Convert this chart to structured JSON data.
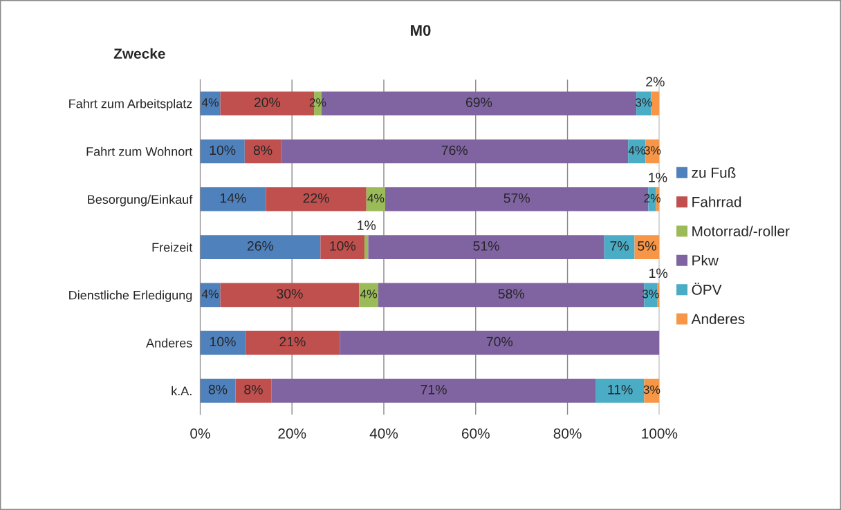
{
  "chart_data": {
    "type": "bar",
    "orientation": "horizontal",
    "stacked": true,
    "title": "M0",
    "ylabel": "Zwecke",
    "categories": [
      "Fahrt zum Arbeitsplatz",
      "Fahrt zum Wohnort",
      "Besorgung/Einkauf",
      "Freizeit",
      "Dienstliche Erledigung",
      "Anderes",
      "k.A."
    ],
    "series": [
      {
        "name": "zu Fuß",
        "color": "#4f81bd",
        "values": [
          4.4,
          9.7,
          14.3,
          26.2,
          4.4,
          9.8,
          7.7
        ],
        "value_labels": [
          "4%",
          "10%",
          "14%",
          "26%",
          "4%",
          "10%",
          "8%"
        ]
      },
      {
        "name": "Fahrrad",
        "color": "#c0504d",
        "values": [
          20.4,
          7.9,
          21.9,
          9.6,
          30.2,
          20.6,
          7.8
        ],
        "value_labels": [
          "20%",
          "8%",
          "22%",
          "10%",
          "30%",
          "21%",
          "8%"
        ]
      },
      {
        "name": "Motorrad/-roller",
        "color": "#9bbb59",
        "values": [
          1.6,
          0,
          4.1,
          0.8,
          4.2,
          0,
          0
        ],
        "value_labels": [
          "2%",
          null,
          "4%",
          "1%",
          "4%",
          null,
          null
        ]
      },
      {
        "name": "Pkw",
        "color": "#8064a2",
        "values": [
          68.6,
          75.6,
          57.3,
          51.4,
          57.9,
          69.6,
          70.7
        ],
        "value_labels": [
          "69%",
          "76%",
          "57%",
          "51%",
          "58%",
          "70%",
          "71%"
        ]
      },
      {
        "name": "ÖPV",
        "color": "#4bacc6",
        "values": [
          3.2,
          3.8,
          1.7,
          6.6,
          2.8,
          0,
          10.5
        ],
        "value_labels": [
          "3%",
          "4%",
          "2%",
          "7%",
          "3%",
          null,
          "11%"
        ]
      },
      {
        "name": "Anderes",
        "color": "#f79646",
        "values": [
          1.8,
          3.0,
          0.7,
          5.4,
          0.5,
          0,
          3.3
        ],
        "value_labels": [
          "2%",
          "3%",
          "1%",
          "5%",
          "1%",
          null,
          "3%"
        ]
      }
    ],
    "xlim": [
      0,
      100
    ],
    "xticks": [
      {
        "value": 0,
        "label": "0%"
      },
      {
        "value": 20,
        "label": "20%"
      },
      {
        "value": 40,
        "label": "40%"
      },
      {
        "value": 60,
        "label": "60%"
      },
      {
        "value": 80,
        "label": "80%"
      },
      {
        "value": 100,
        "label": "100%"
      }
    ],
    "grid": "x",
    "legend": "right"
  }
}
